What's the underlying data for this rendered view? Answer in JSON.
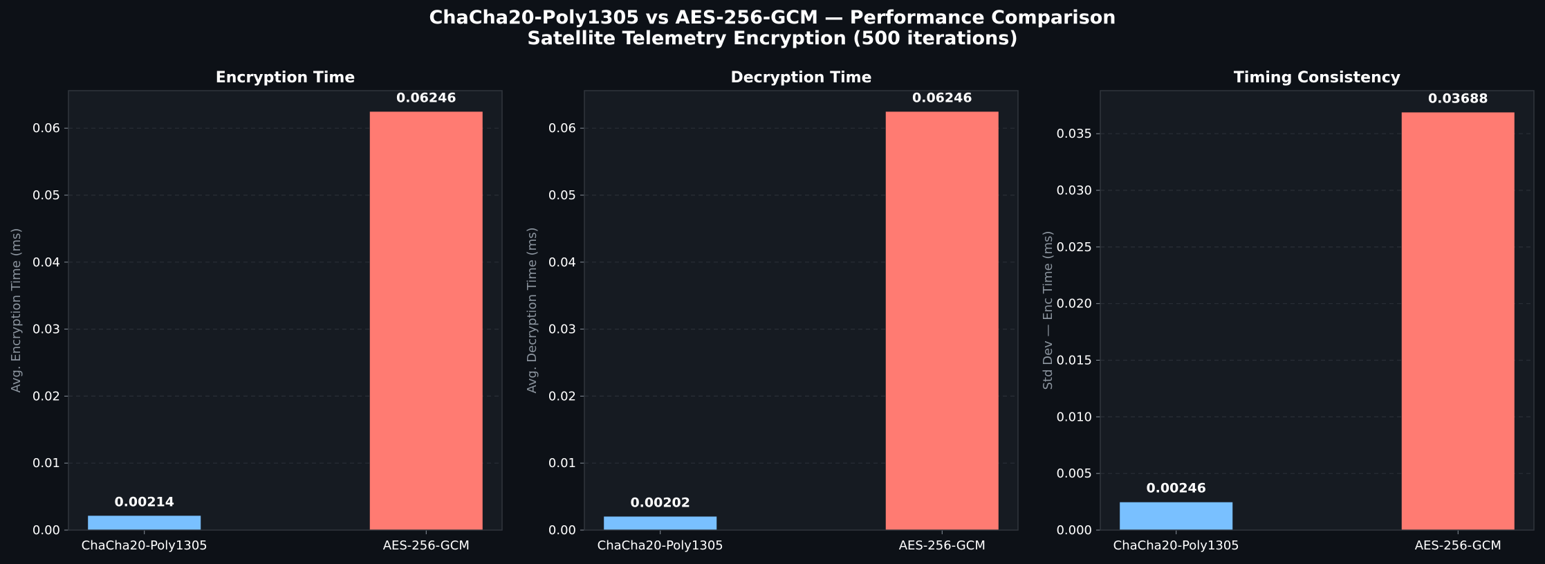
{
  "figure": {
    "title_line1": "ChaCha20-Poly1305 vs AES-256-GCM — Performance Comparison",
    "title_line2": "Satellite Telemetry Encryption (500 iterations)",
    "colors": {
      "background": "#0d1117",
      "panel": "#161b22",
      "border": "#30363d",
      "grid": "#2a2f37",
      "chacha": "#79c0ff",
      "aes": "#ff7b72"
    }
  },
  "chart_data": [
    {
      "type": "bar",
      "title": "Encryption Time",
      "ylabel": "Avg. Encryption Time (ms)",
      "xlabel": "",
      "categories": [
        "ChaCha20-Poly1305",
        "AES-256-GCM"
      ],
      "values": [
        0.00214,
        0.06246
      ],
      "value_labels": [
        "0.00214",
        "0.06246"
      ],
      "ylim": [
        0,
        0.0656
      ],
      "yticks": [
        0,
        0.01,
        0.02,
        0.03,
        0.04,
        0.05,
        0.06
      ],
      "ytick_labels": [
        "0.00",
        "0.01",
        "0.02",
        "0.03",
        "0.04",
        "0.05",
        "0.06"
      ],
      "grid": true
    },
    {
      "type": "bar",
      "title": "Decryption Time",
      "ylabel": "Avg. Decryption Time (ms)",
      "xlabel": "",
      "categories": [
        "ChaCha20-Poly1305",
        "AES-256-GCM"
      ],
      "values": [
        0.00202,
        0.06246
      ],
      "value_labels": [
        "0.00202",
        "0.06246"
      ],
      "ylim": [
        0,
        0.0656
      ],
      "yticks": [
        0,
        0.01,
        0.02,
        0.03,
        0.04,
        0.05,
        0.06
      ],
      "ytick_labels": [
        "0.00",
        "0.01",
        "0.02",
        "0.03",
        "0.04",
        "0.05",
        "0.06"
      ],
      "grid": true
    },
    {
      "type": "bar",
      "title": "Timing Consistency",
      "ylabel": "Std Dev — Enc Time (ms)",
      "xlabel": "",
      "categories": [
        "ChaCha20-Poly1305",
        "AES-256-GCM"
      ],
      "values": [
        0.00246,
        0.03688
      ],
      "value_labels": [
        "0.00246",
        "0.03688"
      ],
      "ylim": [
        0,
        0.0388
      ],
      "yticks": [
        0,
        0.005,
        0.01,
        0.015,
        0.02,
        0.025,
        0.03,
        0.035
      ],
      "ytick_labels": [
        "0.000",
        "0.005",
        "0.010",
        "0.015",
        "0.020",
        "0.025",
        "0.030",
        "0.035"
      ],
      "grid": true
    }
  ]
}
